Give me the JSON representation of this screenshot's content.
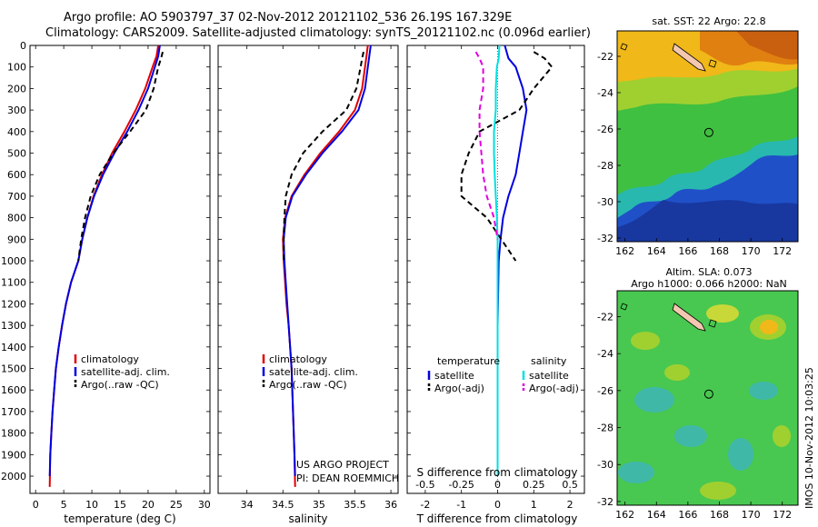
{
  "titles": {
    "line1": "Argo profile: AO 5903797_37 02-Nov-2012 20121102_536 26.19S 167.329E",
    "line2": "Climatology: CARS2009. Satellite-adjusted climatology: synTS_20121102.nc (0.096d earlier)"
  },
  "project_note": [
    "US ARGO PROJECT",
    "PI: DEAN ROEMMICH"
  ],
  "footer_stamp": "IMOS 10-Nov-2012 10:03:25",
  "chart_data": [
    {
      "type": "line",
      "title": "",
      "xlabel": "temperature (deg C)",
      "ylabel": "",
      "xlim": [
        -1,
        31
      ],
      "ylim": [
        2080,
        0
      ],
      "xticks": [
        0,
        5,
        10,
        15,
        20,
        25,
        30
      ],
      "yticks": [
        0,
        100,
        200,
        300,
        400,
        500,
        600,
        700,
        800,
        900,
        1000,
        1100,
        1200,
        1300,
        1400,
        1500,
        1600,
        1700,
        1800,
        1900,
        2000
      ],
      "legend": [
        "climatology",
        "satellite-adj. clim.",
        "Argo(..raw -QC)"
      ],
      "legend_colors": [
        "#e00000",
        "#0000e0",
        "#000000"
      ],
      "series": [
        {
          "name": "climatology",
          "color": "#e00000",
          "dash": "none",
          "x": [
            21.8,
            21.5,
            20.8,
            19.5,
            17.8,
            15.8,
            13.6,
            11.8,
            10.3,
            9.2,
            8.3,
            7.6,
            6.3,
            5.4,
            4.7,
            4.1,
            3.6,
            3.3,
            3.0,
            2.8,
            2.6,
            2.5
          ],
          "y": [
            0,
            50,
            100,
            200,
            300,
            400,
            500,
            600,
            700,
            800,
            900,
            1000,
            1100,
            1200,
            1300,
            1400,
            1500,
            1600,
            1700,
            1800,
            1900,
            2050
          ]
        },
        {
          "name": "satellite-adj. clim.",
          "color": "#0000e0",
          "dash": "none",
          "x": [
            22.1,
            21.8,
            21.2,
            20.0,
            18.3,
            16.3,
            14.0,
            12.0,
            10.4,
            9.2,
            8.3,
            7.6,
            6.3,
            5.4,
            4.7,
            4.1,
            3.6,
            3.3,
            3.0,
            2.8,
            2.6,
            2.5
          ],
          "y": [
            0,
            50,
            100,
            200,
            300,
            400,
            500,
            600,
            700,
            800,
            900,
            1000,
            1100,
            1200,
            1300,
            1400,
            1500,
            1600,
            1700,
            1800,
            1900,
            2000
          ]
        },
        {
          "name": "Argo(..raw -QC)",
          "color": "#000000",
          "dash": "6,4",
          "x": [
            22.6,
            22.3,
            21.8,
            21.0,
            19.6,
            16.8,
            13.8,
            11.4,
            9.8,
            8.8,
            8.1,
            7.6
          ],
          "y": [
            30,
            60,
            100,
            200,
            300,
            400,
            500,
            600,
            700,
            800,
            900,
            1000
          ]
        }
      ]
    },
    {
      "type": "line",
      "title": "",
      "xlabel": "salinity",
      "ylabel": "",
      "xlim": [
        33.6,
        36.1
      ],
      "ylim": [
        2080,
        0
      ],
      "xticks": [
        34,
        34.5,
        35,
        35.5,
        36
      ],
      "legend": [
        "climatology",
        "satellite-adj. clim.",
        "Argo(..raw -QC)"
      ],
      "legend_colors": [
        "#e00000",
        "#0000e0",
        "#000000"
      ],
      "series": [
        {
          "name": "climatology",
          "color": "#e00000",
          "dash": "none",
          "x": [
            35.68,
            35.66,
            35.64,
            35.6,
            35.5,
            35.28,
            35.02,
            34.8,
            34.62,
            34.53,
            34.5,
            34.51,
            34.53,
            34.55,
            34.58,
            34.6,
            34.62,
            34.63,
            34.64,
            34.65,
            34.66,
            34.67
          ],
          "y": [
            0,
            50,
            100,
            200,
            300,
            400,
            500,
            600,
            700,
            800,
            900,
            1000,
            1100,
            1200,
            1300,
            1400,
            1500,
            1600,
            1700,
            1800,
            1900,
            2050
          ]
        },
        {
          "name": "satellite-adj. clim.",
          "color": "#0000e0",
          "dash": "none",
          "x": [
            35.72,
            35.7,
            35.68,
            35.64,
            35.55,
            35.32,
            35.05,
            34.82,
            34.63,
            34.54,
            34.51,
            34.52,
            34.54,
            34.56,
            34.58,
            34.6,
            34.62,
            34.63,
            34.64,
            34.65,
            34.66,
            34.67
          ],
          "y": [
            0,
            50,
            100,
            200,
            300,
            400,
            500,
            600,
            700,
            800,
            900,
            1000,
            1100,
            1200,
            1300,
            1400,
            1500,
            1600,
            1700,
            1800,
            1900,
            2000
          ]
        },
        {
          "name": "Argo(..raw -QC)",
          "color": "#000000",
          "dash": "6,4",
          "x": [
            35.62,
            35.6,
            35.58,
            35.52,
            35.38,
            35.05,
            34.78,
            34.62,
            34.54,
            34.52,
            34.51,
            34.51
          ],
          "y": [
            30,
            60,
            100,
            200,
            300,
            400,
            500,
            600,
            700,
            800,
            900,
            1000
          ]
        }
      ]
    },
    {
      "type": "line",
      "title": "",
      "xlabel": "T difference from climatology",
      "xlabel_top": "S difference from climatology",
      "ylabel": "",
      "xlim": [
        -2.5,
        2.4
      ],
      "ylim": [
        2080,
        0
      ],
      "xticks": [
        -2,
        -1,
        0,
        1,
        2
      ],
      "s_ticks": [
        -0.5,
        -0.25,
        0,
        0.25,
        0.5
      ],
      "legend_left_title": "temperature",
      "legend_right_title": "salinity",
      "legend_left": [
        "satellite",
        "Argo(-adj)"
      ],
      "legend_right": [
        "satellite",
        "Argo(-adj)"
      ],
      "legend_colors_left": [
        "#0000e0",
        "#000000"
      ],
      "legend_colors_right": [
        "#00e0e0",
        "#e000e0"
      ],
      "series": [
        {
          "name": "satellite",
          "color": "#0000e0",
          "dash": "none",
          "x": [
            0.2,
            0.3,
            0.5,
            0.7,
            0.8,
            0.7,
            0.6,
            0.5,
            0.3,
            0.15,
            0.08,
            0.03,
            0.02,
            0.01,
            0.0,
            0.0,
            0.0,
            0.0,
            0.0,
            0.0,
            0.0
          ],
          "y": [
            0,
            60,
            100,
            200,
            300,
            400,
            500,
            600,
            700,
            800,
            900,
            1000,
            1100,
            1200,
            1300,
            1400,
            1500,
            1600,
            1700,
            1800,
            2000
          ]
        },
        {
          "name": "Argo(-adj)",
          "color": "#000000",
          "dash": "6,4",
          "x": [
            1.0,
            1.3,
            1.5,
            1.0,
            0.6,
            -0.5,
            -0.8,
            -1.0,
            -1.0,
            -0.3,
            0.1,
            0.5
          ],
          "y": [
            30,
            60,
            100,
            200,
            300,
            400,
            500,
            600,
            700,
            800,
            900,
            1000
          ]
        },
        {
          "name": "satellite",
          "color": "#00e0e0",
          "dash": "none",
          "x": [
            0.05,
            0.03,
            -0.02,
            -0.05,
            -0.05,
            -0.1,
            -0.1,
            -0.08,
            -0.05,
            -0.02,
            0.0,
            0.0,
            0.0,
            0.0,
            0.0,
            0.0,
            0.0,
            0.0,
            0.0,
            0.0,
            0.0
          ],
          "y": [
            0,
            60,
            100,
            200,
            300,
            400,
            500,
            600,
            700,
            800,
            900,
            1000,
            1100,
            1200,
            1300,
            1400,
            1500,
            1600,
            1700,
            1800,
            2000
          ]
        },
        {
          "name": "Argo(-adj)",
          "color": "#e000e0",
          "dash": "6,4",
          "x": [
            -0.6,
            -0.5,
            -0.4,
            -0.4,
            -0.5,
            -0.5,
            -0.45,
            -0.4,
            -0.3,
            -0.1,
            0.0
          ],
          "y": [
            30,
            60,
            100,
            200,
            300,
            400,
            500,
            600,
            700,
            800,
            900
          ]
        }
      ]
    },
    {
      "type": "heatmap",
      "title": "sat. SST: 22 Argo: 22.8",
      "xticks": [
        "162",
        "164",
        "166",
        "168",
        "170",
        "172"
      ],
      "yticks": [
        "-22",
        "-24",
        "-26",
        "-28",
        "-30",
        "-32"
      ],
      "xlim": [
        161.5,
        173
      ],
      "ylim": [
        -32.2,
        -20.6
      ],
      "marker": {
        "lon": 167.329,
        "lat": -26.19
      }
    },
    {
      "type": "heatmap",
      "title": "Altim. SLA: 0.073",
      "subtitle": "Argo h1000: 0.066 h2000: NaN",
      "xticks": [
        "162",
        "164",
        "166",
        "168",
        "170",
        "172"
      ],
      "yticks": [
        "-22",
        "-24",
        "-26",
        "-28",
        "-30",
        "-32"
      ],
      "xlim": [
        161.5,
        173
      ],
      "ylim": [
        -32.2,
        -20.6
      ],
      "marker": {
        "lon": 167.329,
        "lat": -26.19
      }
    }
  ]
}
